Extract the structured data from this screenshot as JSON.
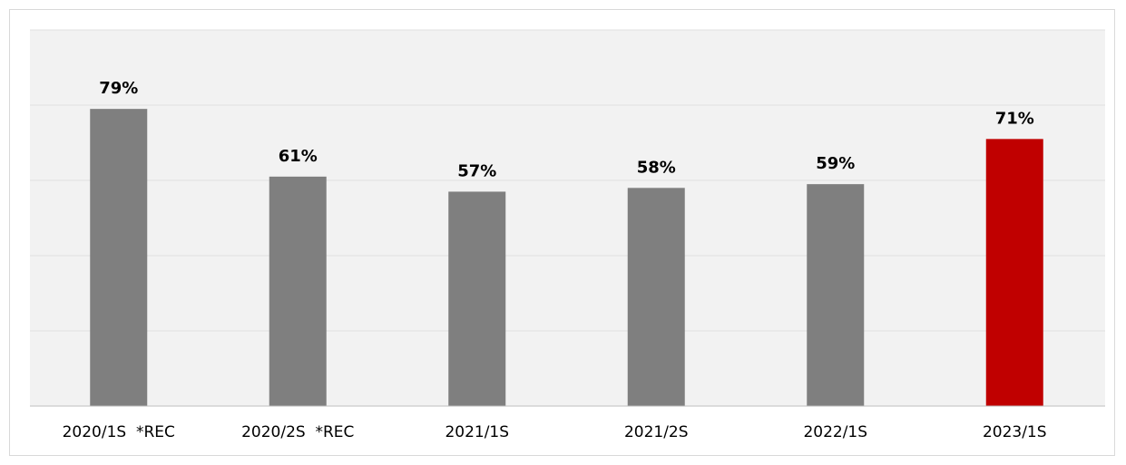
{
  "chart_data": {
    "type": "bar",
    "categories": [
      "2020/1S  *REC",
      "2020/2S  *REC",
      "2021/1S",
      "2021/2S",
      "2022/1S",
      "2023/1S"
    ],
    "values": [
      79,
      61,
      57,
      58,
      59,
      71
    ],
    "value_labels": [
      "79%",
      "61%",
      "57%",
      "58%",
      "59%",
      "71%"
    ],
    "ylim": [
      0,
      100
    ],
    "grid": true,
    "colors": {
      "default_bar": "#7f7f7f",
      "highlight_bar": "#c00000",
      "plot_background": "#f2f2f2",
      "gridline": "#e0e0e0",
      "axis": "#bfbfbf"
    },
    "highlight_index": 5
  }
}
